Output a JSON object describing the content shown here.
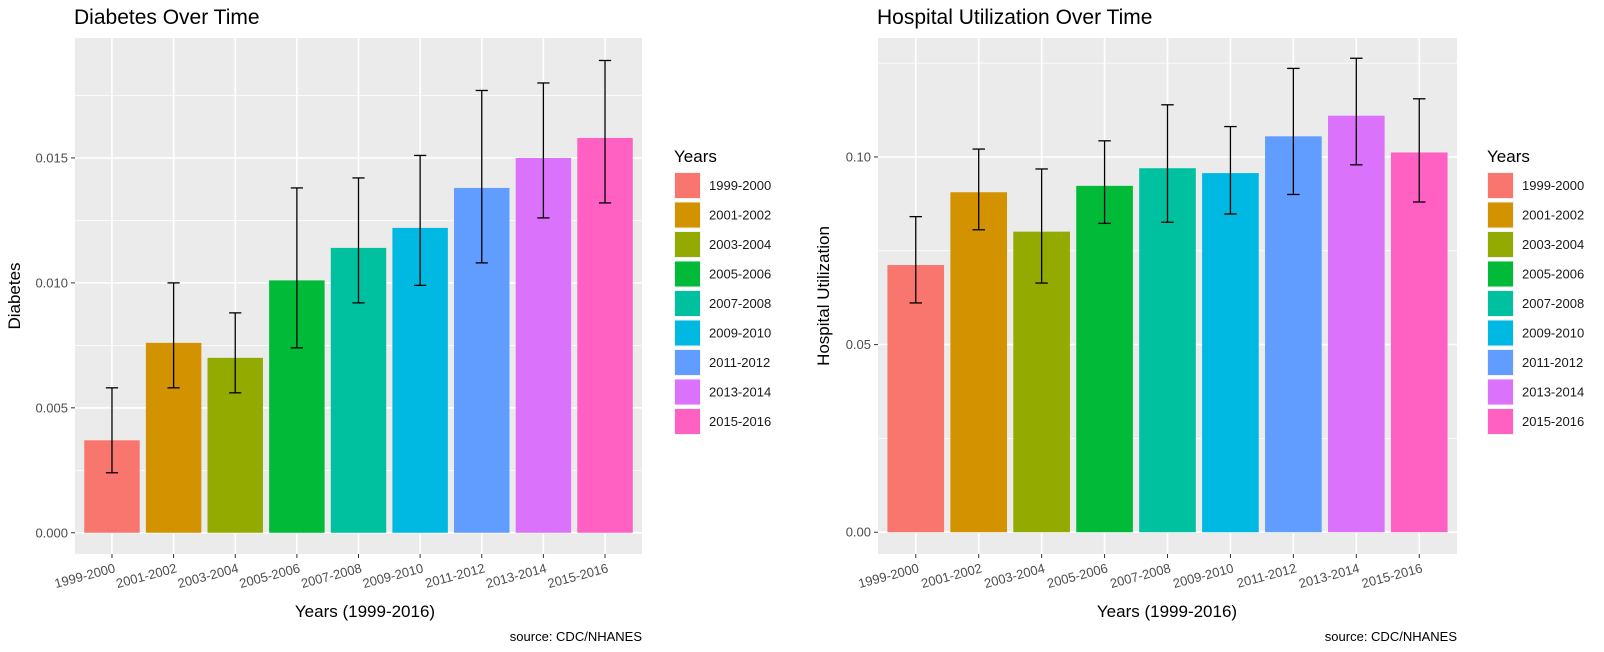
{
  "colors": {
    "panel_background": "#EBEBEB",
    "grid": "#FFFFFF",
    "error_bar": "#000000",
    "categories": [
      "#F8766D",
      "#D39200",
      "#93AA00",
      "#00BA38",
      "#00C19F",
      "#00B9E3",
      "#619CFF",
      "#DB72FB",
      "#FF61C3"
    ]
  },
  "chart_data": [
    {
      "type": "bar",
      "title": "Diabetes Over Time",
      "xlabel": "Years (1999-2016)",
      "ylabel": "Diabetes",
      "caption": "source: CDC/NHANES",
      "legend_title": "Years",
      "legend_position": "right",
      "grid": true,
      "categories": [
        "1999-2000",
        "2001-2002",
        "2003-2004",
        "2005-2006",
        "2007-2008",
        "2009-2010",
        "2011-2012",
        "2013-2014",
        "2015-2016"
      ],
      "values": [
        0.0037,
        0.0076,
        0.007,
        0.0101,
        0.0114,
        0.0122,
        0.0138,
        0.015,
        0.0158
      ],
      "error_low": [
        0.0024,
        0.0058,
        0.0056,
        0.0074,
        0.0092,
        0.0099,
        0.0108,
        0.0126,
        0.0132
      ],
      "error_high": [
        0.0058,
        0.01,
        0.0088,
        0.0138,
        0.0142,
        0.0151,
        0.0177,
        0.018,
        0.0189
      ],
      "yticks": [
        0,
        0.005,
        0.01,
        0.015
      ],
      "ytick_labels": [
        "0.000",
        "0.005",
        "0.010",
        "0.015"
      ],
      "ylim": [
        -0.00085,
        0.0198
      ]
    },
    {
      "type": "bar",
      "title": "Hospital Utilization Over Time",
      "xlabel": "Years (1999-2016)",
      "ylabel": "Hospital Utilization",
      "caption": "source: CDC/NHANES",
      "legend_title": "Years",
      "legend_position": "right",
      "grid": true,
      "categories": [
        "1999-2000",
        "2001-2002",
        "2003-2004",
        "2005-2006",
        "2007-2008",
        "2009-2010",
        "2011-2012",
        "2013-2014",
        "2015-2016"
      ],
      "values": [
        0.0712,
        0.0906,
        0.0801,
        0.0923,
        0.097,
        0.0957,
        0.1055,
        0.111,
        0.1012
      ],
      "error_low": [
        0.0611,
        0.0806,
        0.0664,
        0.0823,
        0.0826,
        0.0848,
        0.09,
        0.0979,
        0.088
      ],
      "error_high": [
        0.0841,
        0.1021,
        0.0968,
        0.1043,
        0.1139,
        0.1081,
        0.1236,
        0.1263,
        0.1155
      ],
      "yticks": [
        0,
        0.05,
        0.1
      ],
      "ytick_labels": [
        "0.00",
        "0.05",
        "0.10"
      ],
      "ylim": [
        -0.0058,
        0.1317
      ]
    }
  ]
}
